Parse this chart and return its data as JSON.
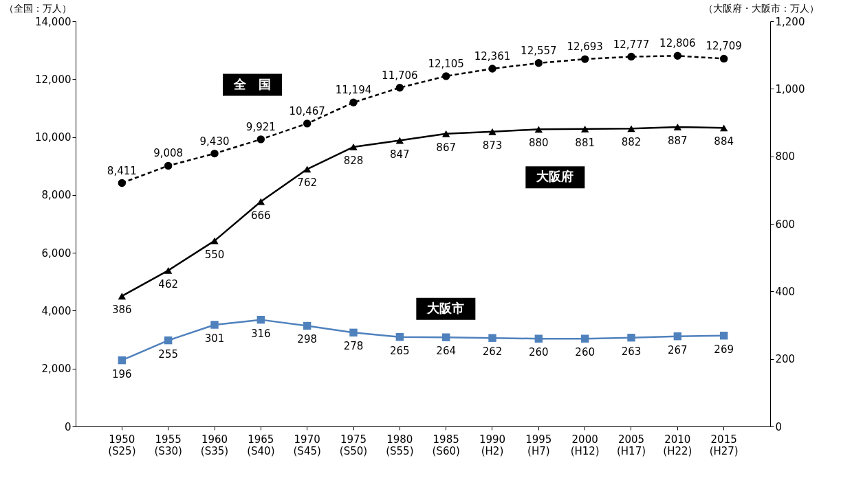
{
  "chart_data": {
    "type": "line",
    "categories": [
      "1950\n(S25)",
      "1955\n(S30)",
      "1960\n(S35)",
      "1965\n(S40)",
      "1970\n(S45)",
      "1975\n(S50)",
      "1980\n(S55)",
      "1985\n(S60)",
      "1990\n(H2)",
      "1995\n(H7)",
      "2000\n(H12)",
      "2005\n(H17)",
      "2010\n(H22)",
      "2015\n(H27)"
    ],
    "ylabel": "（全国：万人）",
    "y2label": "（大阪府・大阪市：万人）",
    "ylim": [
      0,
      14000
    ],
    "yticks": [
      0,
      {
        "value": 2000,
        "label": "2,000"
      },
      {
        "value": 4000,
        "label": "4,000"
      },
      {
        "value": 6000,
        "label": "6,000"
      },
      {
        "value": 8000,
        "label": "8,000"
      },
      {
        "value": 10000,
        "label": "10,000"
      },
      {
        "value": 12000,
        "label": "12,000"
      },
      {
        "value": 14000,
        "label": "14,000"
      }
    ],
    "y2lim": [
      0,
      1200
    ],
    "y2ticks": [
      0,
      200,
      400,
      600,
      800,
      {
        "value": 1000,
        "label": "1,000"
      },
      {
        "value": 1200,
        "label": "1,200"
      }
    ],
    "grid": false,
    "series": [
      {
        "name": "全　国",
        "color": "#000000",
        "marker": "circle",
        "line_style": "dashed",
        "values": [
          8411,
          9008,
          9430,
          9921,
          10467,
          11194,
          11706,
          12105,
          12361,
          12557,
          12693,
          12777,
          12806,
          12709
        ],
        "value_labels": [
          "8,411",
          "9,008",
          "9,430",
          "9,921",
          "10,467",
          "11,194",
          "11,706",
          "12,105",
          "12,361",
          "12,557",
          "12,693",
          "12,777",
          "12,806",
          "12,709"
        ]
      },
      {
        "name": "大阪府",
        "color": "#000000",
        "marker": "triangle",
        "line_style": "solid",
        "axis": "y2",
        "values": [
          386,
          462,
          550,
          666,
          762,
          828,
          847,
          867,
          873,
          880,
          881,
          882,
          887,
          884
        ],
        "value_labels": [
          "386",
          "462",
          "550",
          "666",
          "762",
          "828",
          "847",
          "867",
          "873",
          "880",
          "881",
          "882",
          "887",
          "884"
        ]
      },
      {
        "name": "大阪市",
        "color": "#4f81bd",
        "marker": "square",
        "line_style": "solid",
        "axis": "y2",
        "values": [
          196,
          255,
          301,
          316,
          298,
          278,
          265,
          264,
          262,
          260,
          260,
          263,
          267,
          269
        ],
        "value_labels": [
          "196",
          "255",
          "301",
          "316",
          "298",
          "278",
          "265",
          "264",
          "262",
          "260",
          "260",
          "263",
          "267",
          "269"
        ]
      }
    ]
  }
}
